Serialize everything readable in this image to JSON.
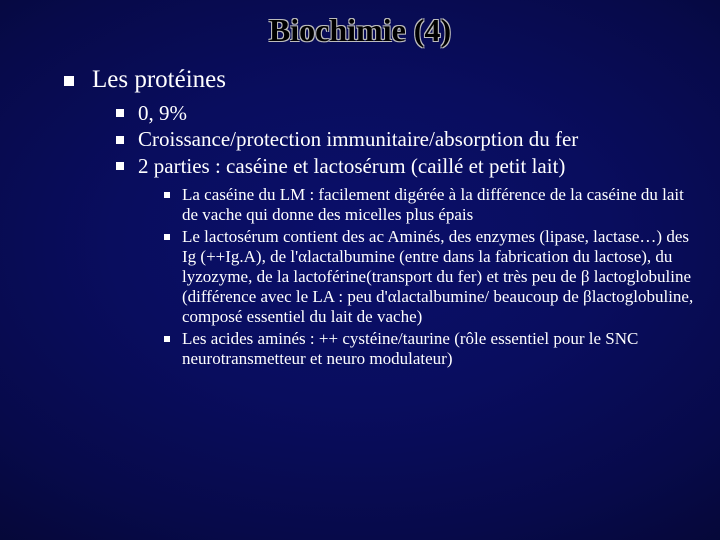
{
  "slide": {
    "title": "Biochimie (4)",
    "title_fontsize": 32,
    "background_colors": {
      "center": "#0a0f6a",
      "edge": "#000010"
    },
    "text_color": "#ffffff",
    "bullet_color": "#ffffff",
    "lvl1": {
      "fontsize": 25,
      "items": [
        {
          "text": "Les protéines",
          "lvl2": {
            "fontsize": 21,
            "items": [
              {
                "text": "0, 9%"
              },
              {
                "text": "Croissance/protection immunitaire/absorption du fer"
              },
              {
                "text": "2 parties : caséine et lactosérum (caillé et petit lait)",
                "lvl3": {
                  "fontsize": 17,
                  "items": [
                    {
                      "text": "La caséine du LM : facilement digérée à la différence de la caséine du lait de vache qui donne des micelles plus épais"
                    },
                    {
                      "text": "Le lactosérum contient des ac Aminés, des enzymes (lipase, lactase…) des Ig (++Ig.A), de l'αlactalbumine (entre dans la fabrication du lactose), du lyzozyme, de la lactoférine(transport du fer) et très peu de β lactoglobuline (différence avec le LA : peu d'αlactalbumine/ beaucoup de βlactoglobuline, composé essentiel du lait de vache)"
                    },
                    {
                      "text": "Les acides aminés : ++ cystéine/taurine (rôle essentiel pour le SNC neurotransmetteur et neuro modulateur)"
                    }
                  ]
                }
              }
            ]
          }
        }
      ]
    }
  }
}
